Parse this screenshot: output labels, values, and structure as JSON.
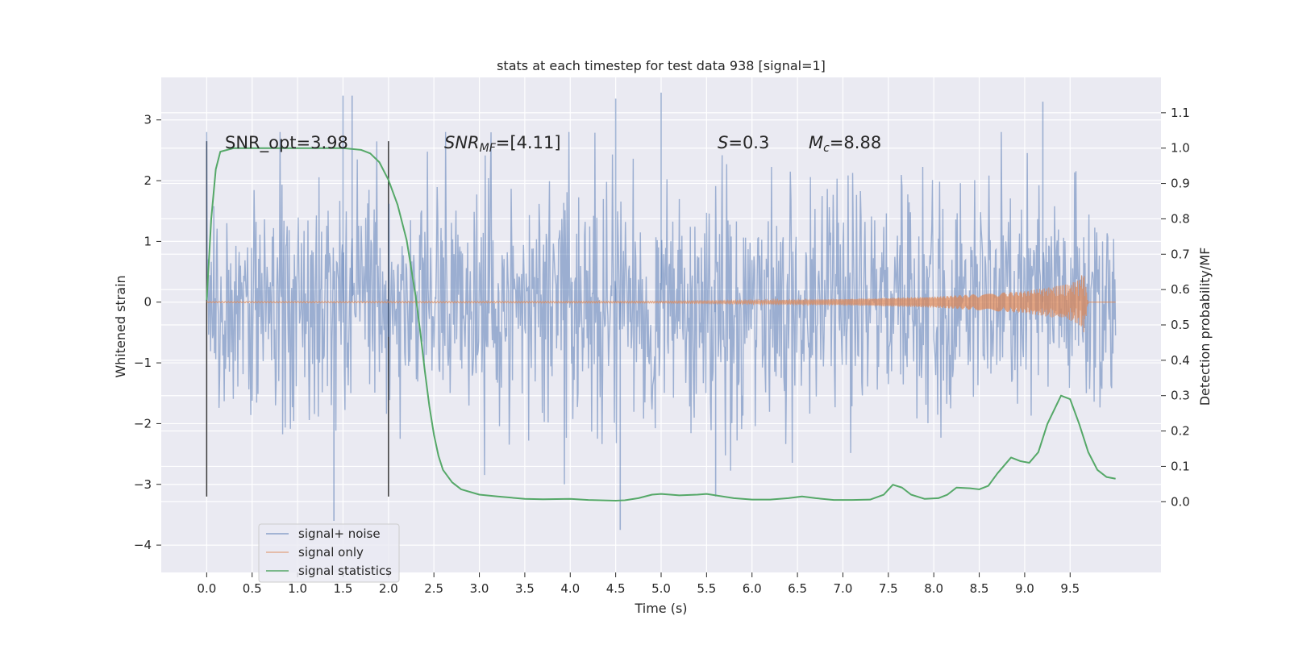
{
  "chart_data": {
    "type": "line",
    "title": "stats at each timestep for test data 938 [signal=1]",
    "xlabel": "Time (s)",
    "ylabel_left": "Whitened strain",
    "ylabel_right": "Detection probability/MF",
    "xlim": [
      -0.5,
      10.5
    ],
    "ylim_left": [
      -4.45,
      3.7
    ],
    "ylim_right": [
      -0.2,
      1.2
    ],
    "x_ticks": [
      "0.0",
      "0.5",
      "1.0",
      "1.5",
      "2.0",
      "2.5",
      "3.0",
      "3.5",
      "4.0",
      "4.5",
      "5.0",
      "5.5",
      "6.0",
      "6.5",
      "7.0",
      "7.5",
      "8.0",
      "8.5",
      "9.0",
      "9.5"
    ],
    "y_left_ticks": [
      "3",
      "2",
      "1",
      "0",
      "−1",
      "−2",
      "−3",
      "−4"
    ],
    "y_right_ticks": [
      "1.1",
      "1.0",
      "0.9",
      "0.8",
      "0.7",
      "0.6",
      "0.5",
      "0.4",
      "0.3",
      "0.2",
      "0.1",
      "0.0"
    ],
    "grid": true,
    "legend_position": "lower-left",
    "annotations": {
      "snr_opt": "SNR_opt=3.98",
      "snr_mf_main": "SNR",
      "snr_mf_sub": "MF",
      "snr_mf_value": "=[4.11]",
      "s_var": "S",
      "s_value": "=0.3",
      "mc_var": "M",
      "mc_sub": "c",
      "mc_value": "=8.88"
    },
    "window_markers_x": [
      0.0,
      2.0
    ],
    "series": [
      {
        "name": "signal+ noise",
        "color": "#4c72b0",
        "axis": "left",
        "x_range": [
          0.0,
          10.0
        ],
        "typical_band": [
          -1.0,
          0.9
        ],
        "extremes": {
          "x": [
            1.5,
            1.6,
            4.5,
            5.0,
            9.2,
            1.4,
            4.55,
            5.6
          ],
          "y": [
            3.4,
            3.4,
            3.35,
            3.45,
            3.3,
            -3.6,
            -3.75,
            -3.2
          ]
        }
      },
      {
        "name": "signal only",
        "color": "#dd8452",
        "axis": "left",
        "x_range": [
          0.0,
          10.0
        ],
        "amplitude_x": [
          0.0,
          5.0,
          6.0,
          7.0,
          8.0,
          9.0,
          9.5,
          9.6,
          9.65,
          9.7,
          10.0
        ],
        "amplitude_y": [
          0.01,
          0.015,
          0.03,
          0.05,
          0.09,
          0.18,
          0.3,
          0.38,
          0.5,
          0.0,
          0.0
        ]
      },
      {
        "name": "signal statistics",
        "color": "#55a868",
        "axis": "right",
        "x": [
          0.0,
          0.05,
          0.1,
          0.15,
          0.3,
          0.5,
          1.0,
          1.5,
          1.7,
          1.8,
          1.9,
          2.0,
          2.1,
          2.2,
          2.3,
          2.35,
          2.4,
          2.45,
          2.5,
          2.55,
          2.6,
          2.7,
          2.8,
          3.0,
          3.2,
          3.5,
          3.7,
          4.0,
          4.2,
          4.5,
          4.6,
          4.75,
          4.9,
          5.0,
          5.2,
          5.4,
          5.5,
          5.6,
          5.8,
          6.0,
          6.2,
          6.4,
          6.55,
          6.7,
          6.9,
          7.1,
          7.3,
          7.45,
          7.55,
          7.65,
          7.75,
          7.9,
          8.05,
          8.15,
          8.25,
          8.4,
          8.5,
          8.6,
          8.7,
          8.85,
          8.95,
          9.05,
          9.15,
          9.25,
          9.4,
          9.5,
          9.6,
          9.7,
          9.8,
          9.9,
          10.0
        ],
        "y": [
          0.57,
          0.8,
          0.94,
          0.99,
          1.0,
          1.0,
          1.0,
          1.0,
          0.995,
          0.985,
          0.96,
          0.91,
          0.84,
          0.74,
          0.58,
          0.48,
          0.37,
          0.27,
          0.19,
          0.13,
          0.09,
          0.055,
          0.035,
          0.02,
          0.015,
          0.008,
          0.007,
          0.008,
          0.005,
          0.003,
          0.004,
          0.01,
          0.02,
          0.022,
          0.018,
          0.02,
          0.022,
          0.018,
          0.01,
          0.006,
          0.006,
          0.01,
          0.015,
          0.01,
          0.005,
          0.005,
          0.006,
          0.02,
          0.048,
          0.04,
          0.02,
          0.008,
          0.01,
          0.02,
          0.04,
          0.038,
          0.035,
          0.045,
          0.08,
          0.125,
          0.115,
          0.11,
          0.14,
          0.22,
          0.3,
          0.29,
          0.22,
          0.14,
          0.09,
          0.07,
          0.065
        ]
      }
    ]
  }
}
